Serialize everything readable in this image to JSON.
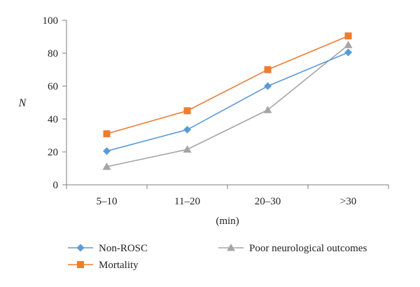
{
  "chart_data": {
    "type": "line",
    "categories": [
      "5–10",
      "11–20",
      "20–30",
      ">30"
    ],
    "xlabel": "(min)",
    "ylabel": "N",
    "ylim": [
      0,
      100
    ],
    "yticks": [
      0,
      20,
      40,
      60,
      80,
      100
    ],
    "grid": false,
    "legend_position": "bottom",
    "series": [
      {
        "name": "Non-ROSC",
        "values": [
          20.5,
          33.5,
          60,
          80.5
        ],
        "color": "#5b9bd5",
        "marker": "diamond"
      },
      {
        "name": "Mortality",
        "values": [
          31,
          45,
          70,
          90.5
        ],
        "color": "#ed7d31",
        "marker": "square"
      },
      {
        "name": "Poor neurological outcomes",
        "values": [
          11,
          21.5,
          45.5,
          85
        ],
        "color": "#a5a5a5",
        "marker": "triangle"
      }
    ]
  }
}
